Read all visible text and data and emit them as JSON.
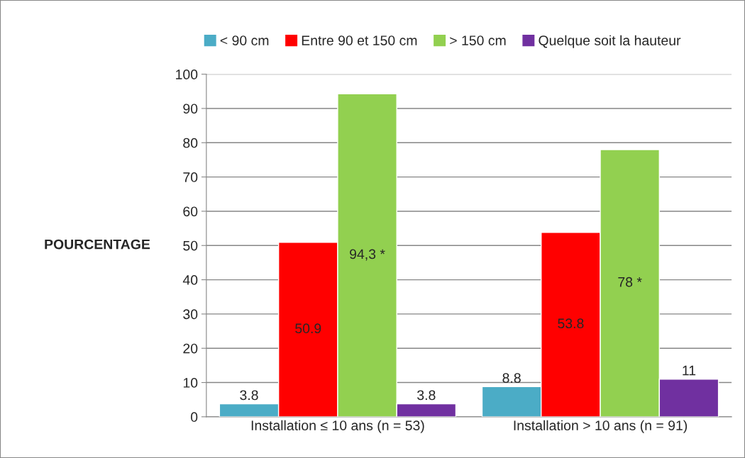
{
  "chart_data": {
    "type": "bar",
    "categories": [
      "Installation ≤ 10 ans (n = 53)",
      "Installation > 10 ans (n = 91)"
    ],
    "ylabel": "POURCENTAGE",
    "series": [
      {
        "name": "< 90 cm",
        "color": "#4bacc6",
        "values": [
          3.8,
          8.8
        ],
        "value_labels": [
          "3.8",
          "8.8"
        ]
      },
      {
        "name": "Entre 90 et 150 cm",
        "color": "#ff0000",
        "values": [
          50.9,
          53.8
        ],
        "value_labels": [
          "50.9",
          "53.8"
        ]
      },
      {
        "name": "> 150 cm",
        "color": "#92d050",
        "values": [
          94.3,
          78
        ],
        "value_labels": [
          "94,3 *",
          "78 *"
        ]
      },
      {
        "name": "Quelque soit la hauteur",
        "color": "#7030a0",
        "values": [
          3.8,
          11
        ],
        "value_labels": [
          "3.8",
          "11"
        ]
      }
    ],
    "ylim": [
      0,
      100
    ],
    "yticks": [
      0,
      10,
      20,
      30,
      40,
      50,
      60,
      70,
      80,
      90,
      100
    ],
    "grid": "y",
    "legend": "top"
  }
}
